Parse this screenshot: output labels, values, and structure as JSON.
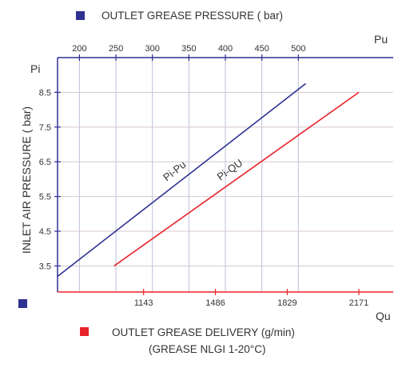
{
  "chart_data": {
    "type": "line",
    "legend": {
      "top": {
        "label": "OUTLET GREASE PRESSURE ( bar)",
        "color": "#2e3192"
      },
      "bottom": {
        "label": "OUTLET GREASE DELIVERY (g/min)",
        "sublabel": "(GREASE NLGI 1-20°C)",
        "color": "#e8242b"
      }
    },
    "ylabel": "INLET AIR PRESSURE ( bar)",
    "y_axis_symbol": "Pi",
    "top_axis_symbol": "Pu",
    "bottom_axis_symbol": "Qu",
    "y_ticks": [
      3.5,
      4.5,
      5.5,
      6.5,
      7.5,
      8.5
    ],
    "ylim": [
      2.75,
      9.5
    ],
    "top_ticks": [
      200,
      250,
      300,
      350,
      400,
      450,
      500
    ],
    "top_xlim": [
      170,
      630
    ],
    "bottom_ticks": [
      1143,
      1486,
      1829,
      2171
    ],
    "bottom_xlim": [
      732,
      2335
    ],
    "series": [
      {
        "name": "Pi-Pu",
        "axis": "top",
        "color": "#2e3192",
        "points": [
          [
            170,
            3.2
          ],
          [
            510,
            8.75
          ]
        ]
      },
      {
        "name": "Pi-QU",
        "axis": "bottom",
        "color": "#e8242b",
        "points": [
          [
            1002,
            3.5
          ],
          [
            2171,
            8.5
          ]
        ]
      }
    ]
  }
}
